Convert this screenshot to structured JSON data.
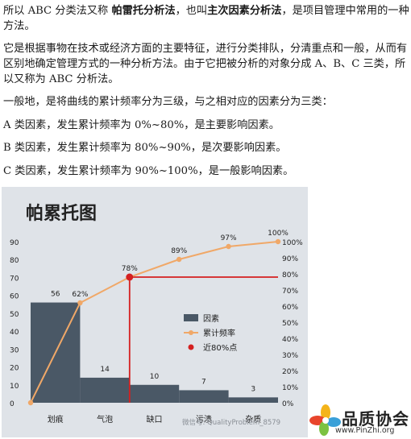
{
  "article": {
    "p1": {
      "pre": "所以 ABC 分类法又称 ",
      "bold1": "帕雷托分析法",
      "mid": "，也叫",
      "bold2": "主次因素分析法",
      "post": "，是项目管理中常用的一种方法。"
    },
    "p2": "它是根据事物在技术或经济方面的主要特征，进行分类排队，分清重点和一般，从而有区别地确定管理方式的一种分析方法。由于它把被分析的对象分成 A、B、C 三类，所以又称为 ABC 分析法。",
    "p3": "一般地，是将曲线的累计频率分为三级，与之相对应的因素分为三类：",
    "p4": "A 类因素，发生累计频率为 0%~80%，是主要影响因素。",
    "p5": "B 类因素，发生累计频率为 80%~90%，是次要影响因素。",
    "p6": "C 类因素，发生累计频率为 90%~100%，是一般影响因素。"
  },
  "chart_data": {
    "type": "bar",
    "title": "帕累托图",
    "categories": [
      "划痕",
      "气泡",
      "缺口",
      "污渍",
      "杂质"
    ],
    "series": [
      {
        "name": "因素",
        "type": "bar",
        "values": [
          56,
          14,
          10,
          7,
          3
        ],
        "color": "#4a5866"
      },
      {
        "name": "累计频率",
        "type": "line",
        "x": [
          0,
          1,
          2,
          3,
          4,
          5
        ],
        "values": [
          0,
          62,
          78,
          89,
          97,
          100
        ],
        "color": "#f0a868"
      }
    ],
    "marker": {
      "name": "近80%点",
      "x": 2,
      "value": 78,
      "color": "#d42020"
    },
    "value_labels": [
      "56",
      "14",
      "10",
      "7",
      "3"
    ],
    "pct_labels": [
      "62%",
      "78%",
      "89%",
      "97%",
      "100%"
    ],
    "y_left": {
      "ticks": [
        0,
        10,
        20,
        30,
        40,
        50,
        60,
        70,
        80,
        90
      ],
      "ylim": [
        0,
        90
      ]
    },
    "y_right": {
      "ticks": [
        "0%",
        "10%",
        "20%",
        "30%",
        "40%",
        "50%",
        "60%",
        "70%",
        "80%",
        "90%",
        "100%"
      ],
      "ylim": [
        0,
        100
      ]
    },
    "legend_position": "center-right",
    "colors": {
      "background": "#dfe3e8",
      "bar": "#4a5866",
      "line": "#f0a868",
      "marker": "#d42020"
    }
  },
  "watermark": "微信号: QualityProblem_8579",
  "logo": {
    "name": "品质协会",
    "url": "www.PinZhi.org"
  }
}
